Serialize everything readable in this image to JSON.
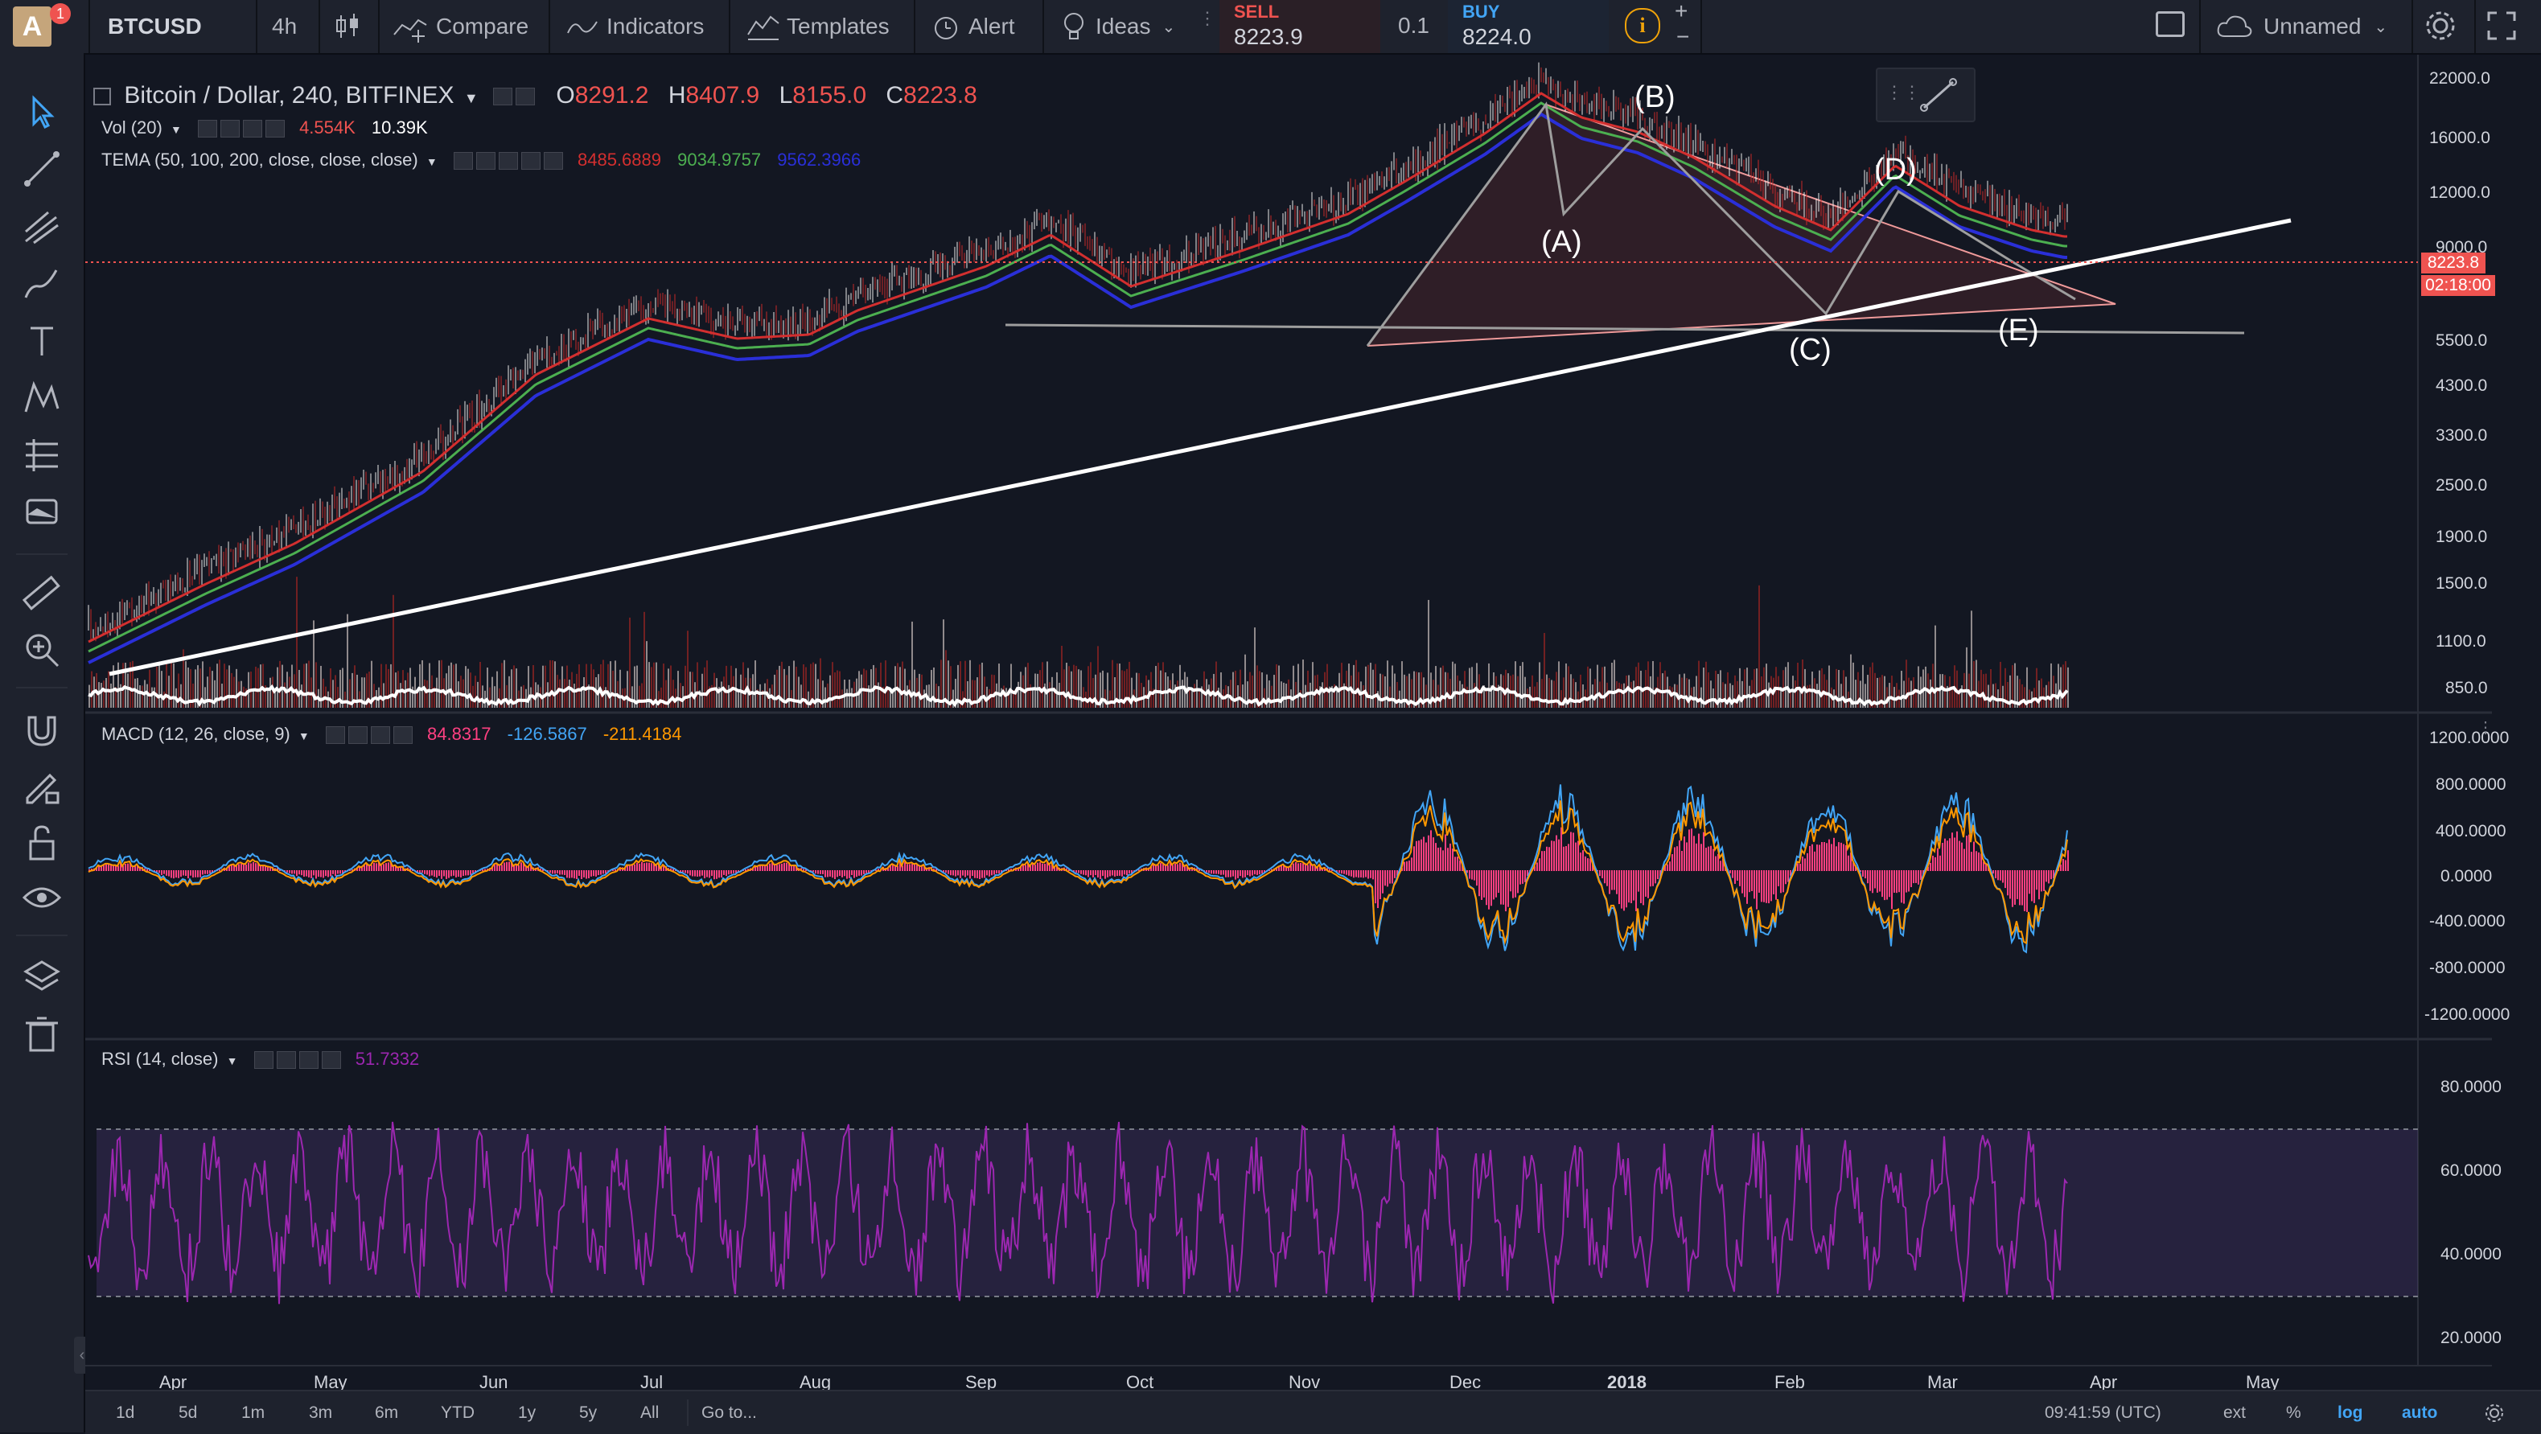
{
  "topbar": {
    "avatar_letter": "A",
    "notification_count": "1",
    "symbol": "BTCUSD",
    "interval": "4h",
    "compare": "Compare",
    "indicators": "Indicators",
    "templates": "Templates",
    "alert": "Alert",
    "ideas": "Ideas",
    "sell_label": "SELL",
    "sell_price": "8223.9",
    "spread": "0.1",
    "buy_label": "BUY",
    "buy_price": "8224.0",
    "plus": "+",
    "minus": "−",
    "layout_name": "Unnamed"
  },
  "legend": {
    "title": "Bitcoin / Dollar, 240, BITFINEX",
    "open_label": "O",
    "open": "8291.2",
    "high_label": "H",
    "high": "8407.9",
    "low_label": "L",
    "low": "8155.0",
    "close_label": "C",
    "close": "8223.8",
    "vol_name": "Vol (20)",
    "vol_value1": "4.554K",
    "vol_value2": "10.39K",
    "tema_name": "TEMA (50, 100, 200, close, close, close)",
    "tema_v1": "8485.6889",
    "tema_v2": "9034.9757",
    "tema_v3": "9562.3966",
    "macd_name": "MACD (12, 26, close, 9)",
    "macd_v1": "84.8317",
    "macd_v2": "-126.5867",
    "macd_v3": "-211.4184",
    "rsi_name": "RSI (14, close)",
    "rsi_value": "51.7332"
  },
  "price_axis": [
    "22000.0",
    "16000.0",
    "12000.0",
    "9000.0",
    "5500.0",
    "4300.0",
    "3300.0",
    "2500.0",
    "1900.0",
    "1500.0",
    "1100.0",
    "850.0"
  ],
  "last_price_tag": "8223.8",
  "countdown_tag": "02:18:00",
  "macd_axis": [
    "1200.0000",
    "800.0000",
    "400.0000",
    "0.0000",
    "-400.0000",
    "-800.0000",
    "-1200.0000"
  ],
  "rsi_axis": [
    "80.0000",
    "60.0000",
    "40.0000",
    "20.0000"
  ],
  "time_axis": [
    "Apr",
    "May",
    "Jun",
    "Jul",
    "Aug",
    "Sep",
    "Oct",
    "Nov",
    "Dec",
    "2018",
    "Feb",
    "Mar",
    "Apr",
    "May"
  ],
  "wave_labels": [
    "(A)",
    "(B)",
    "(C)",
    "(D)",
    "(E)"
  ],
  "bottombar": {
    "ranges": [
      "1d",
      "5d",
      "1m",
      "3m",
      "6m",
      "YTD",
      "1y",
      "5y",
      "All"
    ],
    "goto": "Go to...",
    "clock": "09:41:59 (UTC)",
    "ext": "ext",
    "percent": "%",
    "log": "log",
    "auto": "auto"
  },
  "colors": {
    "background": "#131722",
    "panel": "#1e222d",
    "sell": "#ef5350",
    "buy": "#42a5f5",
    "tema1": "#d32f2f",
    "tema2": "#4caf50",
    "tema3": "#2a2fd8",
    "rsi": "#9c27b0",
    "macd_hist": "#ff4081",
    "trendline": "#ffffff"
  }
}
